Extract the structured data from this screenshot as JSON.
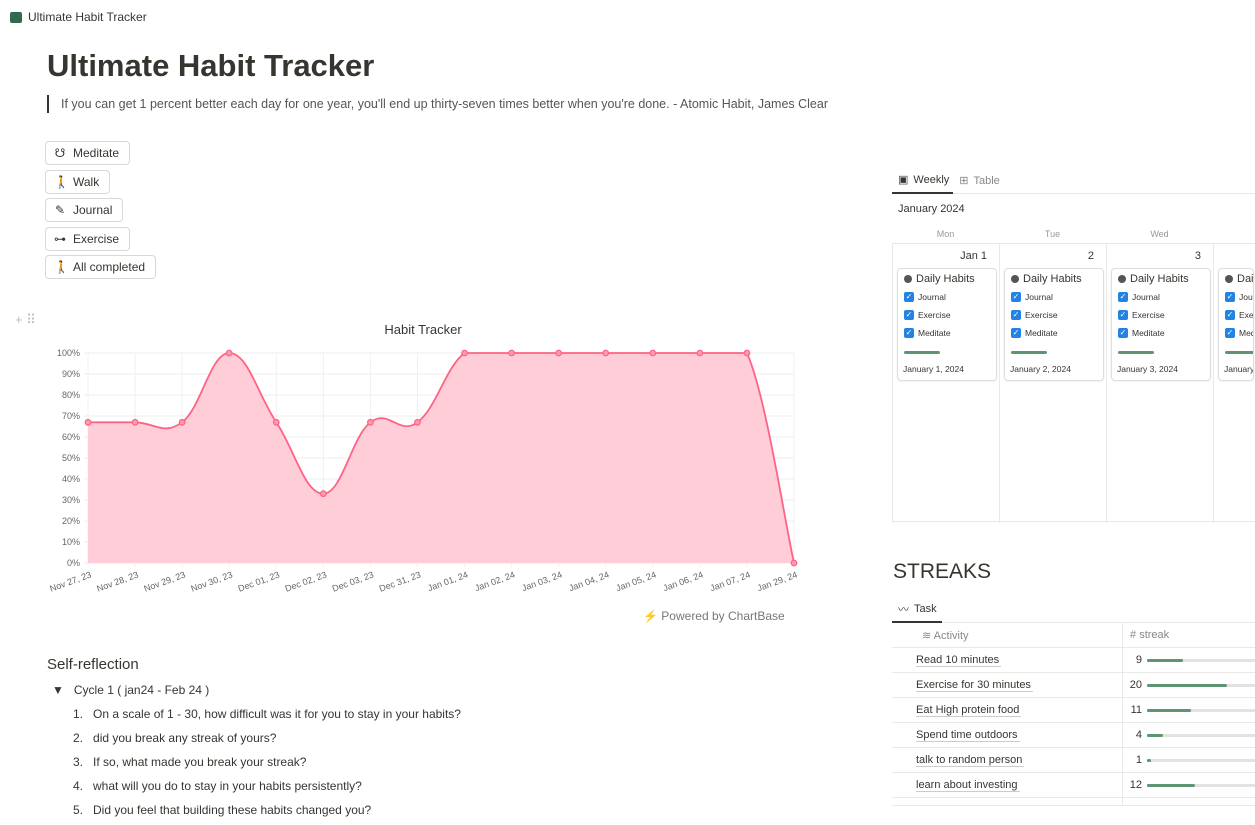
{
  "window": {
    "title": "Ultimate Habit Tracker"
  },
  "page": {
    "title": "Ultimate Habit Tracker",
    "quote": "If you can get 1 percent better each day for one year, you'll end up thirty-seven times better when you're done. -  Atomic Habit, James Clear"
  },
  "buttons": [
    {
      "label": "Meditate",
      "icon": "meditate-icon",
      "glyph": "☋"
    },
    {
      "label": "Walk",
      "icon": "walk-icon",
      "glyph": "🚶"
    },
    {
      "label": "Journal",
      "icon": "journal-icon",
      "glyph": "✎"
    },
    {
      "label": "Exercise",
      "icon": "dumbbell-icon",
      "glyph": "⊶"
    },
    {
      "label": "All completed",
      "icon": "walk-icon",
      "glyph": "🚶"
    }
  ],
  "chart_data": {
    "type": "area",
    "title": "Habit Tracker",
    "categories": [
      "Nov 27, 23",
      "Nov 28, 23",
      "Nov 29, 23",
      "Nov 30, 23",
      "Dec 01, 23",
      "Dec 02, 23",
      "Dec 03, 23",
      "Dec 31, 23",
      "Jan 01, 24",
      "Jan 02, 24",
      "Jan 03, 24",
      "Jan 04, 24",
      "Jan 05, 24",
      "Jan 06, 24",
      "Jan 07, 24",
      "Jan 29, 24"
    ],
    "values": [
      67,
      67,
      67,
      100,
      67,
      33,
      67,
      67,
      100,
      100,
      100,
      100,
      100,
      100,
      100,
      0
    ],
    "ylim": [
      0,
      100
    ],
    "yticks": [
      "0%",
      "10%",
      "20%",
      "30%",
      "40%",
      "50%",
      "60%",
      "70%",
      "80%",
      "90%",
      "100%"
    ],
    "grid": true,
    "color": "#ff6384",
    "fill": "#ffcdd8"
  },
  "powered": "Powered by ChartBase",
  "reflection": {
    "heading": "Self-reflection",
    "cycle": "Cycle 1 ( jan24 - Feb 24 )",
    "questions": [
      "On a scale of 1 - 30, how difficult was it for you to stay in your habits?",
      "did you break any streak of yours?",
      "If so, what made you break your streak?",
      "what will you do to stay in your habits persistently?",
      "Did you feel that building these habits changed you?"
    ]
  },
  "calendar": {
    "tabs": [
      "Weekly",
      "Table"
    ],
    "month": "January 2024",
    "days": [
      {
        "dow": "Mon",
        "num": "Jan 1",
        "date": "January 1, 2024"
      },
      {
        "dow": "Tue",
        "num": "2",
        "date": "January 2, 2024"
      },
      {
        "dow": "Wed",
        "num": "3",
        "date": "January 3, 2024"
      },
      {
        "dow": "",
        "num": "",
        "date": "January"
      }
    ],
    "card_title": "Daily Habits",
    "habits": [
      "Journal",
      "Exercise",
      "Meditate"
    ]
  },
  "streaks": {
    "heading": "STREAKS",
    "tab": "Task",
    "col_activity": "Activity",
    "col_streak": "streak",
    "max": 30,
    "rows": [
      {
        "activity": "Read 10 minutes",
        "streak": 9
      },
      {
        "activity": "Exercise for 30 minutes",
        "streak": 20
      },
      {
        "activity": "Eat High protein food",
        "streak": 11
      },
      {
        "activity": "Spend time outdoors",
        "streak": 4
      },
      {
        "activity": "talk to random person",
        "streak": 1
      },
      {
        "activity": "learn about investing",
        "streak": 12
      }
    ]
  }
}
